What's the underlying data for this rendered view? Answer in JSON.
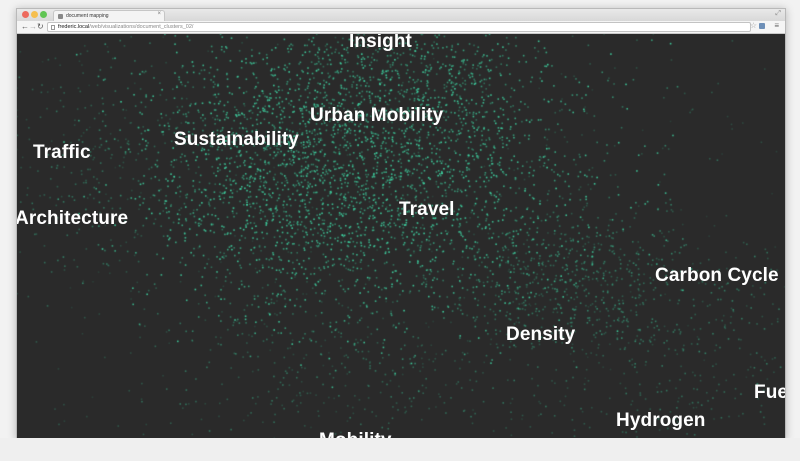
{
  "browser": {
    "tab_title": "document mapping",
    "url_host": "frederic.local",
    "url_path": "/web/visualizations/document_clusters_02/",
    "icons": {
      "close": "close-icon",
      "back": "arrow-left-icon",
      "forward": "arrow-right-icon",
      "reload": "reload-icon",
      "bookmark": "star-icon",
      "menu": "menu-icon"
    }
  },
  "visualization": {
    "background_color": "#2a2a2a",
    "dot_color": "#3fd6a4",
    "label_color": "#ffffff",
    "labels": [
      "Insight",
      "Urban Mobility",
      "Sustainability",
      "Traffic",
      "Travel",
      "Architecture",
      "Carbon Cycle",
      "Density",
      "Fue",
      "Hydrogen",
      "Mobility"
    ]
  }
}
